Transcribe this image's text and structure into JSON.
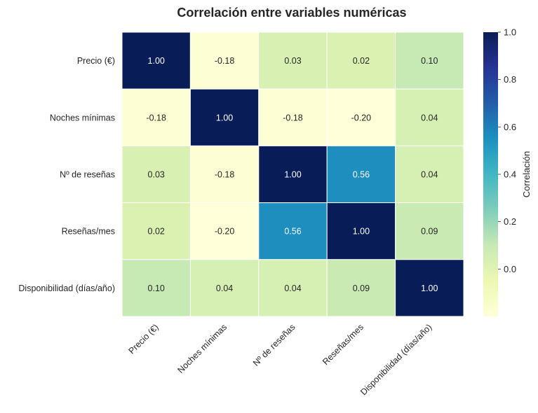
{
  "chart_data": {
    "type": "heatmap",
    "title": "Correlación entre variables numéricas",
    "row_labels": [
      "Precio (€)",
      "Noches mínimas",
      "Nº de reseñas",
      "Reseñas/mes",
      "Disponibilidad (días/año)"
    ],
    "col_labels": [
      "Precio (€)",
      "Noches mínimas",
      "Nº de reseñas",
      "Reseñas/mes",
      "Disponibilidad (días/año)"
    ],
    "values": [
      [
        1.0,
        -0.18,
        0.03,
        0.02,
        0.1
      ],
      [
        -0.18,
        1.0,
        -0.18,
        -0.2,
        0.04
      ],
      [
        0.03,
        -0.18,
        1.0,
        0.56,
        0.04
      ],
      [
        0.02,
        -0.2,
        0.56,
        1.0,
        0.09
      ],
      [
        0.1,
        0.04,
        0.04,
        0.09,
        1.0
      ]
    ],
    "cell_labels": [
      [
        "1.00",
        "-0.18",
        "0.03",
        "0.02",
        "0.10"
      ],
      [
        "-0.18",
        "1.00",
        "-0.18",
        "-0.20",
        "0.04"
      ],
      [
        "0.03",
        "-0.18",
        "1.00",
        "0.56",
        "0.04"
      ],
      [
        "0.02",
        "-0.20",
        "0.56",
        "1.00",
        "0.09"
      ],
      [
        "0.10",
        "0.04",
        "0.04",
        "0.09",
        "1.00"
      ]
    ],
    "colormap": "YlGnBu",
    "vmin": -0.2,
    "vmax": 1.0,
    "colorbar": {
      "label": "Correlación",
      "ticks": [
        0.0,
        0.2,
        0.4,
        0.6,
        0.8,
        1.0
      ],
      "tick_labels": [
        "0.0",
        "0.2",
        "0.4",
        "0.6",
        "0.8",
        "1.0"
      ]
    },
    "x_tick_rotation": 45,
    "legend": "colorbar right"
  }
}
